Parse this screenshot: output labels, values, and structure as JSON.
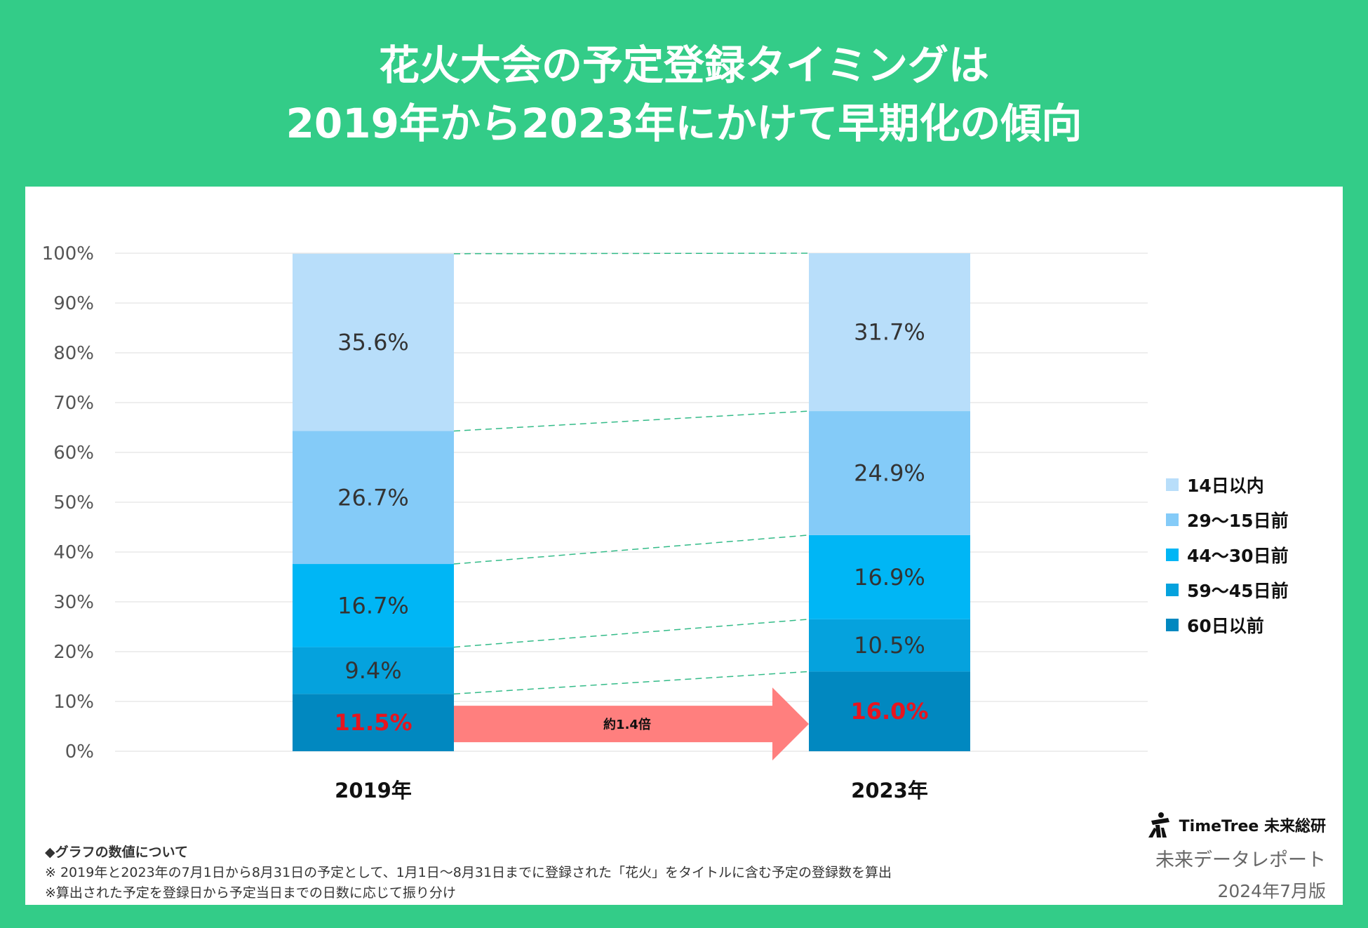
{
  "title": {
    "line1": "花火大会の予定登録タイミングは",
    "line2": "2019年から2023年にかけて早期化の傾向"
  },
  "chart_data": {
    "type": "bar",
    "stacked": true,
    "categories": [
      "2019年",
      "2023年"
    ],
    "series": [
      {
        "name": "60日以前",
        "values": [
          11.5,
          16.0
        ],
        "labels": [
          "11.5%",
          "16.0%"
        ],
        "color": "#0188c0",
        "label_color": "#e8141e"
      },
      {
        "name": "59〜45日前",
        "values": [
          9.4,
          10.5
        ],
        "labels": [
          "9.4%",
          "10.5%"
        ],
        "color": "#05a2dd",
        "label_color": "#333333"
      },
      {
        "name": "44〜30日前",
        "values": [
          16.7,
          16.9
        ],
        "labels": [
          "16.7%",
          "16.9%"
        ],
        "color": "#00b6f5",
        "label_color": "#333333"
      },
      {
        "name": "29〜15日前",
        "values": [
          26.7,
          24.9
        ],
        "labels": [
          "26.7%",
          "24.9%"
        ],
        "color": "#84cbf8",
        "label_color": "#333333"
      },
      {
        "name": "14日以内",
        "values": [
          35.6,
          31.7
        ],
        "labels": [
          "35.6%",
          "31.7%"
        ],
        "color": "#b8defa",
        "label_color": "#333333"
      }
    ],
    "y_ticks": [
      "0%",
      "10%",
      "20%",
      "30%",
      "40%",
      "50%",
      "60%",
      "70%",
      "80%",
      "90%",
      "100%"
    ],
    "ylim": [
      0,
      100
    ],
    "grid": true,
    "legend_position": "right",
    "annotation": {
      "text": "約1.4倍",
      "color": "#ff7f7e"
    },
    "connector_color": "#33bb88"
  },
  "legend": [
    {
      "label": "14日以内",
      "color": "#b8defa"
    },
    {
      "label": "29〜15日前",
      "color": "#84cbf8"
    },
    {
      "label": "44〜30日前",
      "color": "#00b6f5"
    },
    {
      "label": "59〜45日前",
      "color": "#05a2dd"
    },
    {
      "label": "60日以前",
      "color": "#0188c0"
    }
  ],
  "notes": {
    "heading": "◆グラフの数値について",
    "line1": "※ 2019年と2023年の7月1日から8月31日の予定として、1月1日〜8月31日までに登録された「花火」をタイトルに含む予定の登録数を算出",
    "line2": "※算出された予定を登録日から予定当日までの日数に応じて振り分け"
  },
  "brand": {
    "logo_text": "TimeTree 未来総研",
    "report": "未来データレポート",
    "edition": "2024年7月版"
  },
  "colors": {
    "background": "#33cc88",
    "panel": "#ffffff"
  }
}
